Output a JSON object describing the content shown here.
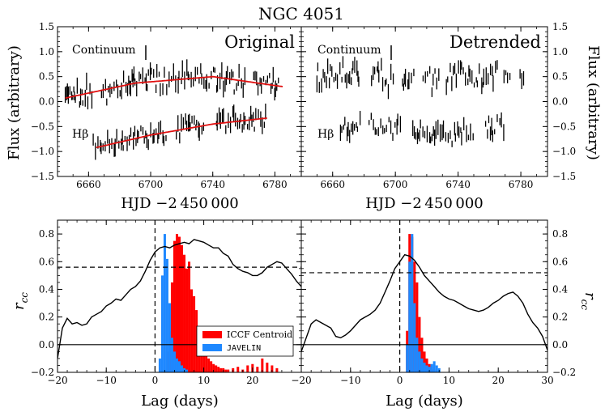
{
  "figure": {
    "title": "NGC 4051",
    "top_xlabel": "HJD −2 450 000",
    "top_ylabel": "Flux (arbitrary)",
    "bottom_xlabel": "Lag (days)",
    "bottom_ylabel": "r",
    "bottom_ylabel_sub": "cc",
    "panel_left": "Original",
    "panel_right": "Detrended",
    "label_continuum": "Continuum",
    "label_hbeta": "Hβ",
    "legend_iccf": "ICCF Centroid",
    "legend_javelin": "JAVELIN"
  },
  "colors": {
    "iccf": "#ff0000",
    "javelin": "#1e88ff",
    "fit": "#e01010"
  },
  "chart_data": [
    {
      "type": "scatter",
      "title": "Original",
      "xlabel": "HJD −2 450 000",
      "ylabel": "Flux (arbitrary)",
      "xlim": [
        6640,
        6797
      ],
      "ylim": [
        -1.5,
        1.5
      ],
      "xticks": [
        6660,
        6700,
        6740,
        6780
      ],
      "yticks": [
        -1.5,
        -1.0,
        -0.5,
        0.0,
        0.5,
        1.0,
        1.5
      ],
      "series": [
        {
          "name": "Continuum",
          "x_range": [
            6645,
            6783
          ],
          "level": 0.32,
          "amp": 0.28,
          "trend": "fit",
          "seed": 11
        },
        {
          "name": "Hβ",
          "x_range": [
            6663,
            6775
          ],
          "level": -0.62,
          "amp": 0.22,
          "trend": "fit",
          "seed": 29
        }
      ],
      "fits": [
        {
          "name": "Continuum fit",
          "x": [
            6645,
            6690,
            6740,
            6785
          ],
          "y": [
            0.07,
            0.37,
            0.5,
            0.3
          ]
        },
        {
          "name": "Hβ fit",
          "x": [
            6665,
            6700,
            6740,
            6775
          ],
          "y": [
            -0.92,
            -0.67,
            -0.45,
            -0.33
          ]
        }
      ]
    },
    {
      "type": "scatter",
      "title": "Detrended",
      "xlabel": "HJD −2 450 000",
      "ylabel": "Flux (arbitrary)",
      "xlim": [
        6640,
        6797
      ],
      "ylim": [
        -1.5,
        1.5
      ],
      "xticks": [
        6660,
        6700,
        6740,
        6780
      ],
      "yticks": [
        -1.5,
        -1.0,
        -0.5,
        0.0,
        0.5,
        1.0,
        1.5
      ],
      "series": [
        {
          "name": "Continuum",
          "x_range": [
            6650,
            6782
          ],
          "level": 0.48,
          "amp": 0.28,
          "trend": "flat",
          "seed": 47
        },
        {
          "name": "Hβ",
          "x_range": [
            6665,
            6772
          ],
          "level": -0.58,
          "amp": 0.22,
          "trend": "flat",
          "seed": 63
        }
      ]
    },
    {
      "type": "line",
      "title": "Original CCF",
      "xlabel": "Lag (days)",
      "ylabel": "r_cc",
      "xlim": [
        -20,
        30
      ],
      "ylim": [
        -0.2,
        0.9
      ],
      "xticks": [
        -20,
        -10,
        0,
        10,
        20
      ],
      "yticks": [
        -0.2,
        0.0,
        0.2,
        0.4,
        0.6,
        0.8
      ],
      "ccf": {
        "x": [
          -20,
          -19,
          -18,
          -17,
          -16,
          -15,
          -14,
          -13,
          -12,
          -11,
          -10,
          -9,
          -8,
          -7,
          -6,
          -5,
          -4,
          -3,
          -2,
          -1,
          0,
          1,
          2,
          3,
          4,
          5,
          6,
          7,
          8,
          9,
          10,
          11,
          12,
          13,
          14,
          15,
          16,
          17,
          18,
          19,
          20,
          21,
          22,
          23,
          24,
          25,
          26,
          27,
          28,
          29,
          30
        ],
        "y": [
          -0.1,
          0.12,
          0.19,
          0.15,
          0.16,
          0.14,
          0.15,
          0.2,
          0.22,
          0.24,
          0.28,
          0.3,
          0.33,
          0.32,
          0.36,
          0.4,
          0.42,
          0.46,
          0.53,
          0.61,
          0.67,
          0.7,
          0.71,
          0.7,
          0.72,
          0.73,
          0.74,
          0.73,
          0.76,
          0.75,
          0.74,
          0.72,
          0.7,
          0.7,
          0.66,
          0.64,
          0.58,
          0.55,
          0.53,
          0.52,
          0.5,
          0.5,
          0.52,
          0.56,
          0.58,
          0.6,
          0.59,
          0.55,
          0.51,
          0.46,
          0.42
        ]
      },
      "threshold": 0.56,
      "zero_lag_line": 0,
      "hist_iccf": {
        "x": [
          2.5,
          3.0,
          3.5,
          4.0,
          4.5,
          5.0,
          5.5,
          6.0,
          6.5,
          7.0,
          7.5,
          8.0,
          8.5,
          9.0,
          9.5,
          10.0,
          10.5,
          11.0,
          11.5,
          12.0,
          12.5,
          13.0,
          13.5,
          14.0,
          14.5,
          15.0
        ],
        "y": [
          -0.05,
          0.1,
          0.45,
          0.75,
          0.8,
          0.78,
          0.72,
          0.65,
          0.55,
          0.6,
          0.4,
          0.35,
          0.25,
          0.12,
          0.05,
          0.0,
          -0.06,
          -0.1,
          -0.12,
          -0.14,
          -0.15,
          -0.16,
          -0.17,
          -0.17,
          -0.18,
          -0.18
        ]
      },
      "hist_javelin": {
        "x": [
          1.0,
          1.5,
          2.0,
          2.5,
          3.0,
          3.5,
          4.0,
          4.5,
          5.0,
          5.5,
          6.0,
          6.5
        ],
        "y": [
          -0.1,
          0.5,
          0.8,
          0.62,
          0.3,
          0.05,
          -0.05,
          -0.1,
          -0.12,
          -0.15,
          -0.17,
          -0.18
        ]
      },
      "hist_tail": {
        "x": [
          16,
          17,
          18,
          19,
          20,
          21,
          22,
          23,
          24,
          25
        ],
        "y": [
          -0.17,
          -0.16,
          -0.18,
          -0.15,
          -0.14,
          -0.16,
          -0.1,
          -0.13,
          -0.15,
          -0.17
        ]
      },
      "legend": [
        "ICCF Centroid",
        "JAVELIN"
      ]
    },
    {
      "type": "line",
      "title": "Detrended CCF",
      "xlabel": "Lag (days)",
      "ylabel": "r_cc",
      "xlim": [
        -20,
        30
      ],
      "ylim": [
        -0.2,
        0.9
      ],
      "xticks": [
        -20,
        -10,
        0,
        10,
        20,
        30
      ],
      "yticks": [
        -0.2,
        0.0,
        0.2,
        0.4,
        0.6,
        0.8
      ],
      "ccf": {
        "x": [
          -20,
          -19,
          -18,
          -17,
          -16,
          -15,
          -14,
          -13,
          -12,
          -11,
          -10,
          -9,
          -8,
          -7,
          -6,
          -5,
          -4,
          -3,
          -2,
          -1,
          0,
          1,
          2,
          3,
          4,
          5,
          6,
          7,
          8,
          9,
          10,
          11,
          12,
          13,
          14,
          15,
          16,
          17,
          18,
          19,
          20,
          21,
          22,
          23,
          24,
          25,
          26,
          27,
          28,
          29,
          30
        ],
        "y": [
          -0.05,
          0.05,
          0.15,
          0.18,
          0.16,
          0.14,
          0.12,
          0.06,
          0.05,
          0.07,
          0.1,
          0.14,
          0.18,
          0.2,
          0.22,
          0.25,
          0.3,
          0.38,
          0.46,
          0.55,
          0.6,
          0.65,
          0.64,
          0.61,
          0.56,
          0.5,
          0.46,
          0.42,
          0.38,
          0.35,
          0.33,
          0.32,
          0.3,
          0.28,
          0.26,
          0.25,
          0.24,
          0.25,
          0.27,
          0.3,
          0.32,
          0.35,
          0.37,
          0.38,
          0.35,
          0.3,
          0.22,
          0.16,
          0.12,
          0.06,
          -0.04
        ]
      },
      "threshold": 0.52,
      "zero_lag_line": 0,
      "hist_iccf": {
        "x": [
          1.5,
          2.0,
          2.5,
          3.0,
          3.5,
          4.0,
          4.5,
          5.0,
          5.5,
          6.0,
          6.5,
          7.0
        ],
        "y": [
          0.1,
          0.8,
          0.78,
          0.6,
          0.45,
          0.2,
          0.05,
          -0.05,
          -0.1,
          -0.14,
          -0.16,
          -0.18
        ]
      },
      "hist_javelin": {
        "x": [
          1.5,
          2.0,
          2.5,
          3.0,
          3.5,
          4.0,
          4.5,
          5.0,
          5.5,
          6.0,
          6.5,
          7.0,
          7.5,
          8.0
        ],
        "y": [
          0.0,
          0.6,
          0.8,
          0.3,
          0.05,
          -0.05,
          -0.1,
          -0.13,
          -0.15,
          -0.16,
          -0.14,
          -0.12,
          -0.15,
          -0.17
        ]
      },
      "legend": []
    }
  ]
}
